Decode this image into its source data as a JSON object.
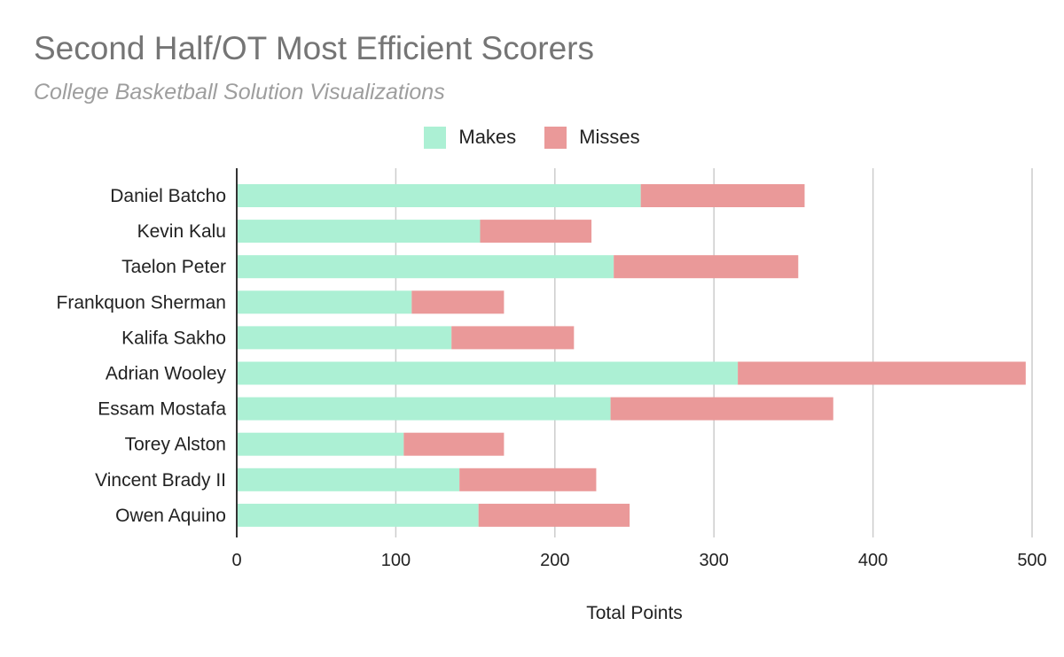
{
  "chart_data": {
    "type": "bar",
    "orientation": "horizontal",
    "stacked": true,
    "title": "Second Half/OT Most Efficient Scorers",
    "subtitle": "College Basketball Solution Visualizations",
    "xlabel": "Total Points",
    "ylabel": "",
    "xlim": [
      0,
      500
    ],
    "xticks": [
      "0",
      "100",
      "200",
      "300",
      "400",
      "500"
    ],
    "grid": true,
    "legend_position": "top-center",
    "categories": [
      "Daniel Batcho",
      "Kevin Kalu",
      "Taelon Peter",
      "Frankquon Sherman",
      "Kalifa Sakho",
      "Adrian Wooley",
      "Essam Mostafa",
      "Torey Alston",
      "Vincent Brady II",
      "Owen Aquino"
    ],
    "series": [
      {
        "name": "Makes",
        "color": "#acf0d4",
        "values": [
          254,
          153,
          237,
          110,
          135,
          315,
          235,
          105,
          140,
          152
        ]
      },
      {
        "name": "Misses",
        "color": "#ea9999",
        "values": [
          103,
          70,
          116,
          58,
          77,
          181,
          140,
          63,
          86,
          95
        ]
      }
    ]
  }
}
